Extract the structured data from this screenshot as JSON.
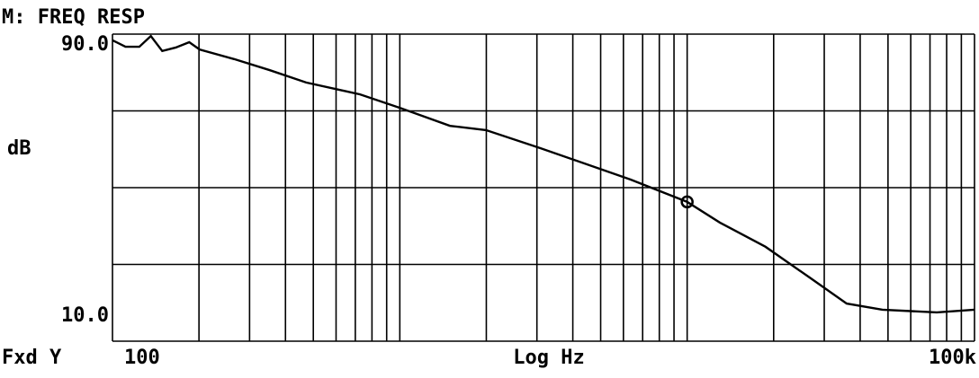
{
  "chart_data": {
    "type": "line",
    "title": "M: FREQ RESP",
    "y_label": "dB",
    "x_label": "Log Hz",
    "y_scale_mode": "Fxd Y",
    "x_scale": "log",
    "xlim": [
      100,
      100000
    ],
    "ylim": [
      10,
      90
    ],
    "xticks": [
      100,
      {
        "value": 100000,
        "label": "100k"
      }
    ],
    "yticks": [
      {
        "value": 90,
        "label": "90.0"
      },
      {
        "value": 10,
        "label": "10.0"
      }
    ],
    "xgrid": [
      100,
      200,
      300,
      400,
      500,
      600,
      700,
      800,
      900,
      1000,
      2000,
      3000,
      4000,
      5000,
      6000,
      7000,
      8000,
      9000,
      10000,
      20000,
      30000,
      40000,
      50000,
      60000,
      70000,
      80000,
      90000,
      100000
    ],
    "ygrid": [
      10,
      30,
      50,
      70,
      90
    ],
    "color": "#000000",
    "x": [
      100,
      111,
      124,
      136,
      149,
      166,
      185,
      201,
      265,
      353,
      472,
      727,
      1000,
      1495,
      1994,
      3083,
      6358,
      10000,
      13000,
      18730,
      26900,
      35900,
      47800,
      73900,
      100000
    ],
    "values": [
      88.4,
      86.7,
      86.7,
      89.5,
      85.6,
      86.5,
      87.9,
      86.0,
      83.5,
      80.6,
      77.4,
      74.3,
      70.8,
      66.1,
      65.0,
      60.3,
      52.1,
      46.3,
      40.9,
      34.6,
      26.4,
      19.8,
      18.2,
      17.5,
      18.2
    ],
    "marker": {
      "x": 10000,
      "y": 46.3
    }
  }
}
